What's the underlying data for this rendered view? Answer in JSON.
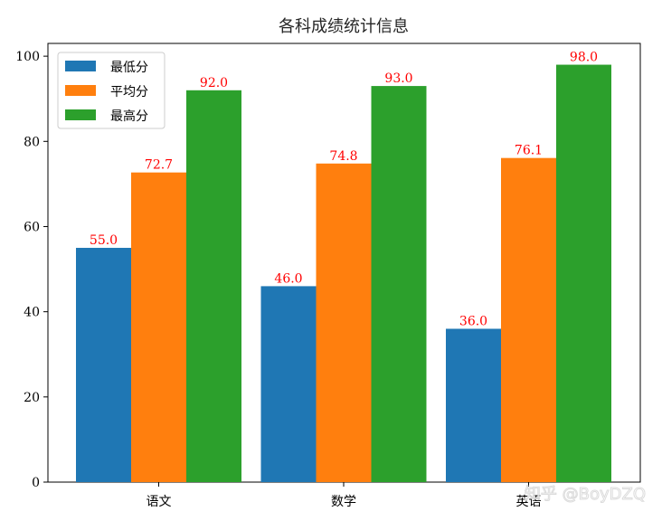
{
  "chart_data": {
    "type": "bar",
    "title": "各科成绩统计信息",
    "categories": [
      "语文",
      "数学",
      "英语"
    ],
    "series": [
      {
        "name": "最低分",
        "values": [
          55.0,
          46.0,
          36.0
        ],
        "color": "#1f77b4"
      },
      {
        "name": "平均分",
        "values": [
          72.7,
          74.8,
          76.1
        ],
        "color": "#ff7f0e"
      },
      {
        "name": "最高分",
        "values": [
          92.0,
          93.0,
          98.0
        ],
        "color": "#2ca02c"
      }
    ],
    "value_label_color": "#ff0000",
    "ylim": [
      0,
      103
    ],
    "yticks": [
      0,
      20,
      40,
      60,
      80,
      100
    ],
    "xlabel": "",
    "ylabel": "",
    "grid": false,
    "legend_position": "upper-left"
  },
  "watermark": "知乎 @BoyDZQ"
}
